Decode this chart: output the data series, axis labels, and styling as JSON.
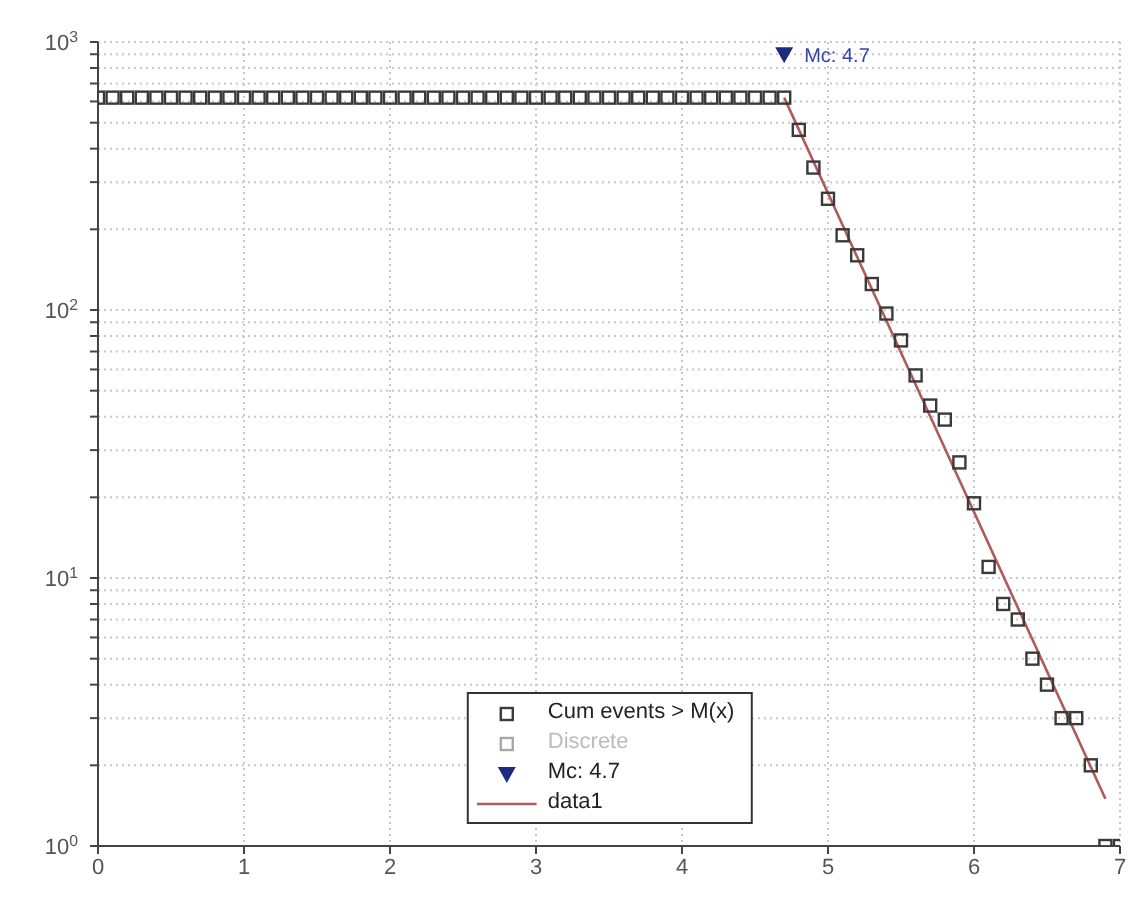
{
  "chart_data": {
    "type": "scatter",
    "x": [
      0,
      0.1,
      0.2,
      0.3,
      0.4,
      0.5,
      0.6,
      0.7,
      0.8,
      0.9,
      1,
      1.1,
      1.2,
      1.3,
      1.4,
      1.5,
      1.6,
      1.7,
      1.8,
      1.9,
      2,
      2.1,
      2.2,
      2.3,
      2.4,
      2.5,
      2.6,
      2.7,
      2.8,
      2.9,
      3,
      3.1,
      3.2,
      3.3,
      3.4,
      3.5,
      3.6,
      3.7,
      3.8,
      3.9,
      4,
      4.1,
      4.2,
      4.3,
      4.4,
      4.5,
      4.6,
      4.7,
      4.8,
      4.9,
      5,
      5.1,
      5.2,
      5.3,
      5.4,
      5.5,
      5.6,
      5.7,
      5.8,
      5.9,
      6,
      6.1,
      6.2,
      6.3,
      6.4,
      6.5,
      6.6,
      6.7,
      6.8,
      6.9,
      7
    ],
    "series": [
      {
        "name": "Cum events > M(x)",
        "color": "#3a3a3a",
        "marker": "square",
        "values": [
          620,
          620,
          620,
          620,
          620,
          620,
          620,
          620,
          620,
          620,
          620,
          620,
          620,
          620,
          620,
          620,
          620,
          620,
          620,
          620,
          620,
          620,
          620,
          620,
          620,
          620,
          620,
          620,
          620,
          620,
          620,
          620,
          620,
          620,
          620,
          620,
          620,
          620,
          620,
          620,
          620,
          620,
          620,
          620,
          620,
          620,
          620,
          620,
          470,
          340,
          260,
          190,
          160,
          125,
          97,
          77,
          57,
          44,
          39,
          27,
          19,
          11,
          8,
          7,
          5,
          4,
          3,
          3,
          2,
          1,
          1
        ]
      },
      {
        "name": "Discrete",
        "color": "#a8a8a8",
        "marker": "square",
        "values": [
          null,
          null,
          null,
          null,
          null,
          null,
          null,
          null,
          null,
          null,
          null,
          null,
          null,
          null,
          null,
          null,
          null,
          null,
          null,
          null,
          null,
          null,
          null,
          null,
          null,
          null,
          null,
          null,
          null,
          null,
          null,
          null,
          null,
          null,
          null,
          null,
          null,
          null,
          null,
          null,
          null,
          null,
          null,
          null,
          null,
          null,
          null,
          null,
          null,
          null,
          null,
          null,
          null,
          null,
          null,
          null,
          null,
          null,
          null,
          null,
          null,
          null,
          null,
          null,
          null,
          null,
          null,
          null,
          null,
          null,
          null
        ]
      },
      {
        "name": "Mc: 4.7",
        "color": "#1c2a80",
        "marker": "triangle",
        "values": [
          null,
          null,
          null,
          null,
          null,
          null,
          null,
          null,
          null,
          null,
          null,
          null,
          null,
          null,
          null,
          null,
          null,
          null,
          null,
          null,
          null,
          null,
          null,
          null,
          null,
          null,
          null,
          null,
          null,
          null,
          null,
          null,
          null,
          null,
          null,
          null,
          null,
          null,
          null,
          null,
          null,
          null,
          null,
          null,
          null,
          null,
          null,
          900,
          null,
          null,
          null,
          null,
          null,
          null,
          null,
          null,
          null,
          null,
          null,
          null,
          null,
          null,
          null,
          null,
          null,
          null,
          null,
          null,
          null,
          null,
          null
        ]
      },
      {
        "name": "data1",
        "type": "line",
        "color": "#b05a5a",
        "marker": "none",
        "line_style": "solid",
        "x": [
          4.7,
          6.9
        ],
        "values": [
          620,
          1.5
        ]
      }
    ],
    "xlim": [
      0,
      7
    ],
    "xticks": [
      0,
      1,
      2,
      3,
      4,
      5,
      6,
      7
    ],
    "ylim": [
      1,
      1000
    ],
    "yticks": [
      {
        "value": 1,
        "label": "10$^{0}$"
      },
      {
        "value": 2,
        "label": null
      },
      {
        "value": 3,
        "label": null
      },
      {
        "value": 4,
        "label": null
      },
      {
        "value": 5,
        "label": null
      },
      {
        "value": 6,
        "label": null
      },
      {
        "value": 7,
        "label": null
      },
      {
        "value": 8,
        "label": null
      },
      {
        "value": 9,
        "label": null
      },
      {
        "value": 10,
        "label": "10$^{1}$"
      },
      {
        "value": 20,
        "label": null
      },
      {
        "value": 30,
        "label": null
      },
      {
        "value": 40,
        "label": null
      },
      {
        "value": 50,
        "label": null
      },
      {
        "value": 60,
        "label": null
      },
      {
        "value": 70,
        "label": null
      },
      {
        "value": 80,
        "label": null
      },
      {
        "value": 90,
        "label": null
      },
      {
        "value": 100,
        "label": "10$^{2}$"
      },
      {
        "value": 200,
        "label": null
      },
      {
        "value": 300,
        "label": null
      },
      {
        "value": 400,
        "label": null
      },
      {
        "value": 500,
        "label": null
      },
      {
        "value": 600,
        "label": null
      },
      {
        "value": 700,
        "label": null
      },
      {
        "value": 800,
        "label": null
      },
      {
        "value": 900,
        "label": null
      },
      {
        "value": 1000,
        "label": "10$^{3}$"
      }
    ],
    "log": "y",
    "grid": true,
    "legend": "bottom",
    "annotations": [
      {
        "text": "Mc: 4.7",
        "x": 4.7,
        "y": 900
      }
    ]
  }
}
